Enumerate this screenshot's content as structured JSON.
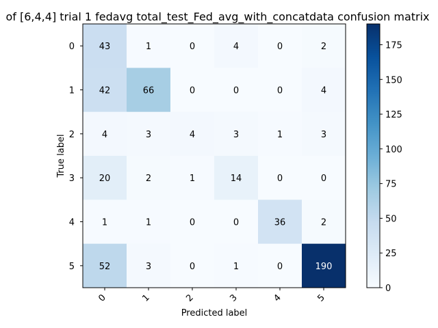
{
  "chart_data": {
    "type": "heatmap",
    "title": "of [6,4,4] trial 1 fedavg total_test_Fed_avg_with_concatdata confusion matrix",
    "xlabel": "Predicted label",
    "ylabel": "True label",
    "x_categories": [
      "0",
      "1",
      "2",
      "3",
      "4",
      "5"
    ],
    "y_categories": [
      "0",
      "1",
      "2",
      "3",
      "4",
      "5"
    ],
    "matrix": [
      [
        43,
        1,
        0,
        4,
        0,
        2
      ],
      [
        42,
        66,
        0,
        0,
        0,
        4
      ],
      [
        4,
        3,
        4,
        3,
        1,
        3
      ],
      [
        20,
        2,
        1,
        14,
        0,
        0
      ],
      [
        1,
        1,
        0,
        0,
        36,
        2
      ],
      [
        52,
        3,
        0,
        1,
        0,
        190
      ]
    ],
    "colormap": "Blues",
    "color_range": [
      0,
      190
    ],
    "text_threshold": 95,
    "colorbar_ticks": [
      0,
      25,
      50,
      75,
      100,
      125,
      150,
      175
    ],
    "colors": {
      "text_dark": "#000000",
      "text_light": "#ffffff"
    }
  }
}
